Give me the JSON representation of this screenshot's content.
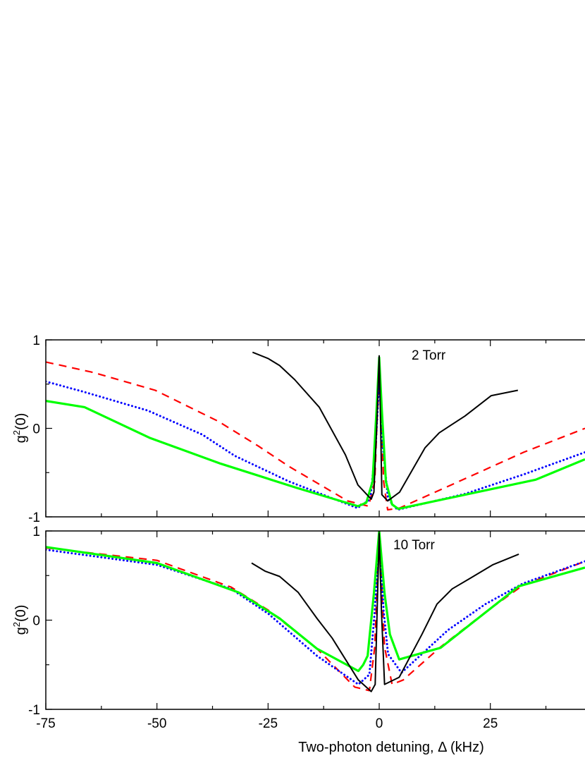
{
  "chart_data": [
    {
      "type": "line",
      "annotation": "2 Torr",
      "ylabel": "g2(0)",
      "xlabel": "",
      "xlim": [
        -75,
        46.3
      ],
      "ylim": [
        -1,
        1
      ],
      "x_ticks": [
        -75,
        -50,
        -25,
        0,
        25
      ],
      "y_ticks": [
        -1,
        0,
        1
      ],
      "y_tick_labels": [
        "-1",
        "0",
        "1"
      ],
      "grid": false,
      "series": [
        {
          "color": "#ff0000",
          "style": "dashed",
          "x": [
            -75,
            -64.2,
            -50.4,
            -36.2,
            -27.2,
            -20.3,
            -7.1,
            -2.4,
            -1.0,
            -0.4,
            0,
            0.4,
            1.0,
            1.9,
            4.6,
            16.6,
            32.5,
            46.3
          ],
          "y": [
            0.75,
            0.63,
            0.43,
            0.08,
            -0.2,
            -0.43,
            -0.82,
            -0.88,
            -0.6,
            0.2,
            0.5,
            0.2,
            -0.6,
            -0.92,
            -0.9,
            -0.63,
            -0.27,
            0.0
          ]
        },
        {
          "color": "#0000ff",
          "style": "dotted",
          "x": [
            -75,
            -66.3,
            -52,
            -39.8,
            -32.5,
            -20.3,
            -4.9,
            -2.0,
            -0.8,
            0,
            0.8,
            2.0,
            4.1,
            19.3,
            32.5,
            46.3
          ],
          "y": [
            0.53,
            0.41,
            0.2,
            -0.07,
            -0.31,
            -0.6,
            -0.9,
            -0.8,
            -0.2,
            0.55,
            -0.2,
            -0.8,
            -0.92,
            -0.74,
            -0.52,
            -0.27
          ]
        },
        {
          "color": "#00ff00",
          "style": "solid",
          "x": [
            -75,
            -66.3,
            -51.5,
            -35.6,
            -18.7,
            -4.8,
            -2.9,
            -1.5,
            -0.6,
            0,
            0.6,
            1.5,
            2.9,
            4.3,
            35.2,
            46.3
          ],
          "y": [
            0.31,
            0.24,
            -0.11,
            -0.4,
            -0.67,
            -0.88,
            -0.84,
            -0.6,
            0.2,
            0.8,
            0.2,
            -0.6,
            -0.86,
            -0.91,
            -0.58,
            -0.35
          ]
        },
        {
          "color": "#000000",
          "style": "solid",
          "x": [
            -28.5,
            -25,
            -22.4,
            -19,
            -13.5,
            -7.6,
            -4.8,
            -1.8,
            -1.2,
            -0.5,
            0,
            0.3,
            0.6,
            1.9,
            4.6,
            10.3,
            13.5,
            19.3,
            25.2,
            31.2
          ],
          "y": [
            0.86,
            0.79,
            0.71,
            0.55,
            0.24,
            -0.3,
            -0.64,
            -0.8,
            -0.72,
            0.1,
            0.82,
            0.1,
            -0.75,
            -0.82,
            -0.72,
            -0.22,
            -0.05,
            0.14,
            0.37,
            0.43
          ]
        }
      ]
    },
    {
      "type": "line",
      "annotation": "10 Torr",
      "ylabel": "g2(0)",
      "xlabel": "Two-photon detuning, Δ (kHz)",
      "xlim": [
        -75,
        46.3
      ],
      "ylim": [
        -1,
        1
      ],
      "x_ticks": [
        -75,
        -50,
        -25,
        0,
        25
      ],
      "x_tick_labels": [
        "-75",
        "-50",
        "-25",
        "0",
        "25"
      ],
      "y_ticks": [
        -1,
        0,
        1
      ],
      "y_tick_labels": [
        "-1",
        "0",
        "1"
      ],
      "grid": false,
      "series": [
        {
          "color": "#ff0000",
          "style": "dashed",
          "x": [
            -75,
            -50,
            -33.3,
            -24.9,
            -14,
            -5.5,
            -2.2,
            -1.0,
            0,
            1.2,
            2.9,
            5.4,
            13.8,
            23.9,
            32.3,
            46.3
          ],
          "y": [
            0.81,
            0.67,
            0.37,
            0.11,
            -0.32,
            -0.75,
            -0.79,
            -0.3,
            0.99,
            -0.3,
            -0.72,
            -0.67,
            -0.3,
            0.09,
            0.39,
            0.66
          ]
        },
        {
          "color": "#0000ff",
          "style": "dotted",
          "x": [
            -75,
            -50,
            -33.3,
            -24.9,
            -14,
            -4.7,
            -2.2,
            -1.0,
            0,
            1.0,
            2.0,
            5.0,
            15.5,
            23.9,
            32.3,
            46.3
          ],
          "y": [
            0.79,
            0.62,
            0.35,
            0.07,
            -0.4,
            -0.72,
            -0.61,
            0.1,
            0.95,
            0.1,
            -0.38,
            -0.59,
            -0.11,
            0.18,
            0.41,
            0.66
          ]
        },
        {
          "color": "#00ff00",
          "style": "solid",
          "x": [
            -75,
            -50,
            -31.6,
            -22.4,
            -14,
            -4.7,
            -3.6,
            -2.6,
            -1.2,
            0,
            1.2,
            2.4,
            4.5,
            13.8,
            31.4,
            46.3
          ],
          "y": [
            0.82,
            0.64,
            0.31,
            0.02,
            -0.32,
            -0.57,
            -0.5,
            -0.4,
            0.3,
            1.0,
            0.3,
            -0.16,
            -0.44,
            -0.31,
            0.38,
            0.59
          ]
        },
        {
          "color": "#000000",
          "style": "solid",
          "x": [
            -28.7,
            -25.7,
            -22.4,
            -18.2,
            -14,
            -10.6,
            -4.7,
            -1.8,
            -0.9,
            0,
            0.5,
            1.2,
            4.5,
            9.6,
            13,
            16.4,
            20.5,
            25.5,
            31.4
          ],
          "y": [
            0.64,
            0.55,
            0.49,
            0.31,
            0.02,
            -0.2,
            -0.67,
            -0.8,
            -0.72,
            0.97,
            0.1,
            -0.72,
            -0.64,
            -0.16,
            0.18,
            0.35,
            0.47,
            0.62,
            0.74
          ]
        }
      ]
    }
  ]
}
